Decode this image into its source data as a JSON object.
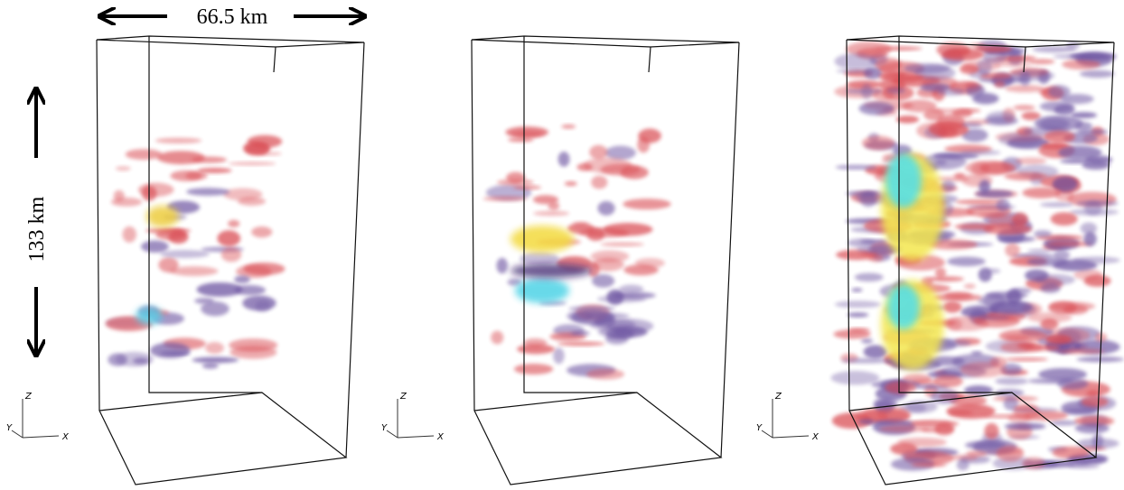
{
  "scale": {
    "width_label": "66.5 km",
    "height_label": "133 km"
  },
  "panels": [
    {
      "axes": {
        "z": "Z",
        "y": "Y",
        "x": "X"
      }
    },
    {
      "axes": {
        "z": "Z",
        "y": "Y",
        "x": "X"
      }
    },
    {
      "axes": {
        "z": "Z",
        "y": "Y",
        "x": "X"
      }
    }
  ]
}
